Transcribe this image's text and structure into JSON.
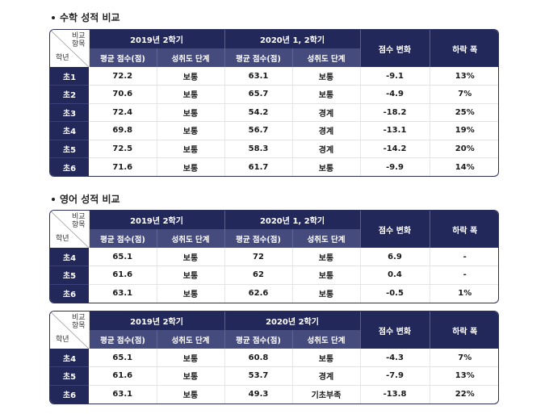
{
  "sections": [
    {
      "title": "수학 성적 비교",
      "tables": [
        {
          "corner_top": "비교\n항목",
          "corner_bottom": "학년",
          "period1": "2019년 2학기",
          "period2": "2020년 1, 2학기",
          "col_score": "평균 점수(점)",
          "col_level": "성취도 단계",
          "col_change": "점수 변화",
          "col_drop": "하락 폭",
          "rows": [
            [
              "초1",
              "72.2",
              "보통",
              "63.1",
              "보통",
              "-9.1",
              "13%"
            ],
            [
              "초2",
              "70.6",
              "보통",
              "65.7",
              "보통",
              "-4.9",
              "7%"
            ],
            [
              "초3",
              "72.4",
              "보통",
              "54.2",
              "경계",
              "-18.2",
              "25%"
            ],
            [
              "초4",
              "69.8",
              "보통",
              "56.7",
              "경계",
              "-13.1",
              "19%"
            ],
            [
              "초5",
              "72.5",
              "보통",
              "58.3",
              "경계",
              "-14.2",
              "20%"
            ],
            [
              "초6",
              "71.6",
              "보통",
              "61.7",
              "보통",
              "-9.9",
              "14%"
            ]
          ]
        }
      ]
    },
    {
      "title": "영어 성적 비교",
      "tables": [
        {
          "corner_top": "비교\n항목",
          "corner_bottom": "학년",
          "period1": "2019년 2학기",
          "period2": "2020년 1, 2학기",
          "col_score": "평균 점수(점)",
          "col_level": "성취도 단계",
          "col_change": "점수 변화",
          "col_drop": "하락 폭",
          "rows": [
            [
              "초4",
              "65.1",
              "보통",
              "72",
              "보통",
              "6.9",
              "-"
            ],
            [
              "초5",
              "61.6",
              "보통",
              "62",
              "보통",
              "0.4",
              "-"
            ],
            [
              "초6",
              "63.1",
              "보통",
              "62.6",
              "보통",
              "-0.5",
              "1%"
            ]
          ]
        },
        {
          "corner_top": "비교\n항목",
          "corner_bottom": "학년",
          "period1": "2019년 2학기",
          "period2": "2020년 2학기",
          "col_score": "평균 점수(점)",
          "col_level": "성취도 단계",
          "col_change": "점수 변화",
          "col_drop": "하락 폭",
          "rows": [
            [
              "초4",
              "65.1",
              "보통",
              "60.8",
              "보통",
              "-4.3",
              "7%"
            ],
            [
              "초5",
              "61.6",
              "보통",
              "53.7",
              "경계",
              "-7.9",
              "13%"
            ],
            [
              "초6",
              "63.1",
              "보통",
              "49.3",
              "기초부족",
              "-13.8",
              "22%"
            ]
          ]
        }
      ]
    }
  ]
}
